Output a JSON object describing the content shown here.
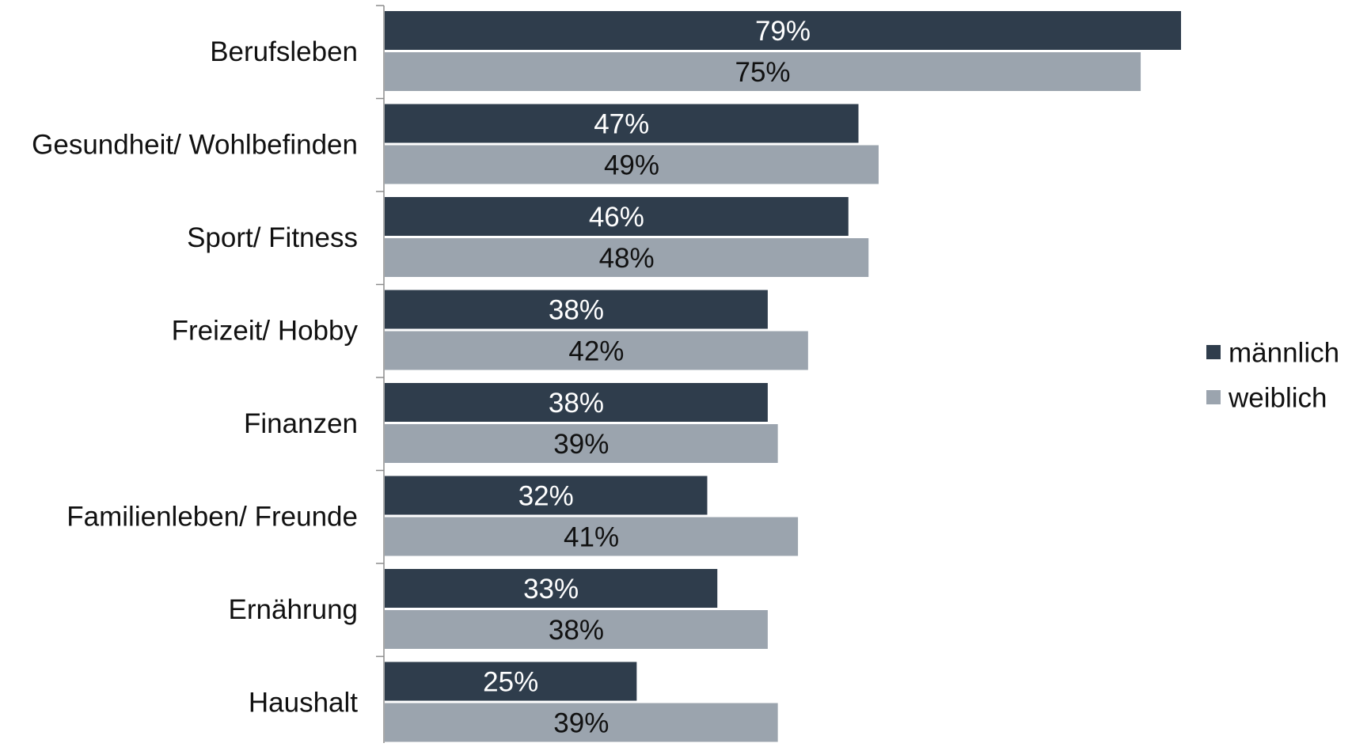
{
  "chart_data": {
    "type": "bar",
    "orientation": "horizontal",
    "categories": [
      "Berufsleben",
      "Gesundheit/ Wohlbefinden",
      "Sport/ Fitness",
      "Freizeit/ Hobby",
      "Finanzen",
      "Familienleben/ Freunde",
      "Ernährung",
      "Haushalt"
    ],
    "series": [
      {
        "name": "männlich",
        "color": "#2f3d4c",
        "values": [
          79,
          47,
          46,
          38,
          38,
          32,
          33,
          25
        ],
        "labels": [
          "79%",
          "47%",
          "46%",
          "38%",
          "38%",
          "32%",
          "33%",
          "25%"
        ],
        "label_color": "#ffffff"
      },
      {
        "name": "weiblich",
        "color": "#9ba4ae",
        "values": [
          75,
          49,
          48,
          42,
          39,
          41,
          38,
          39
        ],
        "labels": [
          "75%",
          "49%",
          "48%",
          "42%",
          "39%",
          "41%",
          "38%",
          "39%"
        ],
        "label_color": "#111111"
      }
    ],
    "title": "",
    "xlabel": "",
    "ylabel": "",
    "xlim": [
      0,
      80
    ],
    "grid": false,
    "legend_position": "right"
  }
}
